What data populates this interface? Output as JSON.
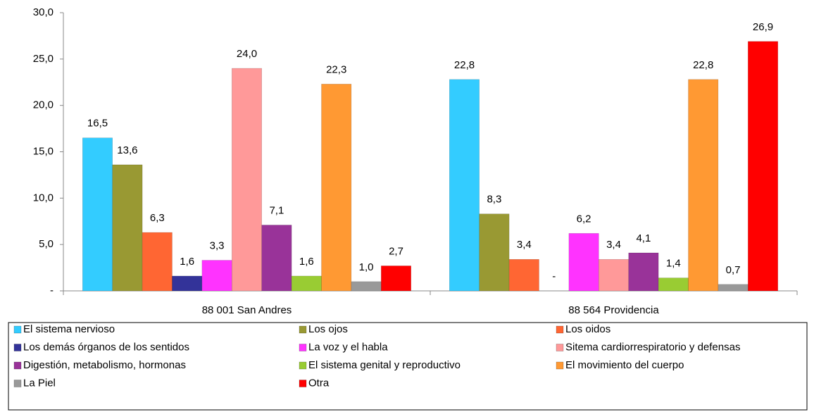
{
  "chart_data": {
    "type": "bar",
    "categories": [
      "88 001 San Andres",
      "88 564 Providencia"
    ],
    "ylim": [
      0,
      30
    ],
    "yticks": [
      {
        "value": 0,
        "label": "-"
      },
      {
        "value": 5,
        "label": "5,0"
      },
      {
        "value": 10,
        "label": "10,0"
      },
      {
        "value": 15,
        "label": "15,0"
      },
      {
        "value": 20,
        "label": "20,0"
      },
      {
        "value": 25,
        "label": "25,0"
      },
      {
        "value": 30,
        "label": "30,0"
      }
    ],
    "legend": "bottom",
    "series": [
      {
        "name": "El sistema nervioso",
        "color": "#33ccff",
        "values": [
          16.5,
          22.8
        ],
        "value_labels": [
          "16,5",
          "22,8"
        ]
      },
      {
        "name": "Los ojos",
        "color": "#999933",
        "values": [
          13.6,
          8.3
        ],
        "value_labels": [
          "13,6",
          "8,3"
        ]
      },
      {
        "name": "Los oidos",
        "color": "#ff6633",
        "values": [
          6.3,
          3.4
        ],
        "value_labels": [
          "6,3",
          "3,4"
        ]
      },
      {
        "name": "Los demás órganos de los sentidos",
        "color": "#333399",
        "values": [
          1.6,
          0
        ],
        "value_labels": [
          "1,6",
          "-"
        ]
      },
      {
        "name": "La voz y el habla",
        "color": "#ff33ff",
        "values": [
          3.3,
          6.2
        ],
        "value_labels": [
          "3,3",
          "6,2"
        ]
      },
      {
        "name": "Sitema cardiorrespiratorio y  defensas",
        "color": "#ff9999",
        "values": [
          24.0,
          3.4
        ],
        "value_labels": [
          "24,0",
          "3,4"
        ]
      },
      {
        "name": "Digestión, metabolismo,  hormonas",
        "color": "#993399",
        "values": [
          7.1,
          4.1
        ],
        "value_labels": [
          "7,1",
          "4,1"
        ]
      },
      {
        "name": "El sistema genital y reproductivo",
        "color": "#99cc33",
        "values": [
          1.6,
          1.4
        ],
        "value_labels": [
          "1,6",
          "1,4"
        ]
      },
      {
        "name": "El movimiento del cuerpo",
        "color": "#ff9933",
        "values": [
          22.3,
          22.8
        ],
        "value_labels": [
          "22,3",
          "22,8"
        ]
      },
      {
        "name": "La Piel",
        "color": "#999999",
        "values": [
          1.0,
          0.7
        ],
        "value_labels": [
          "1,0",
          "0,7"
        ]
      },
      {
        "name": "Otra",
        "color": "#ff0000",
        "values": [
          2.7,
          26.9
        ],
        "value_labels": [
          "2,7",
          "26,9"
        ]
      }
    ]
  }
}
